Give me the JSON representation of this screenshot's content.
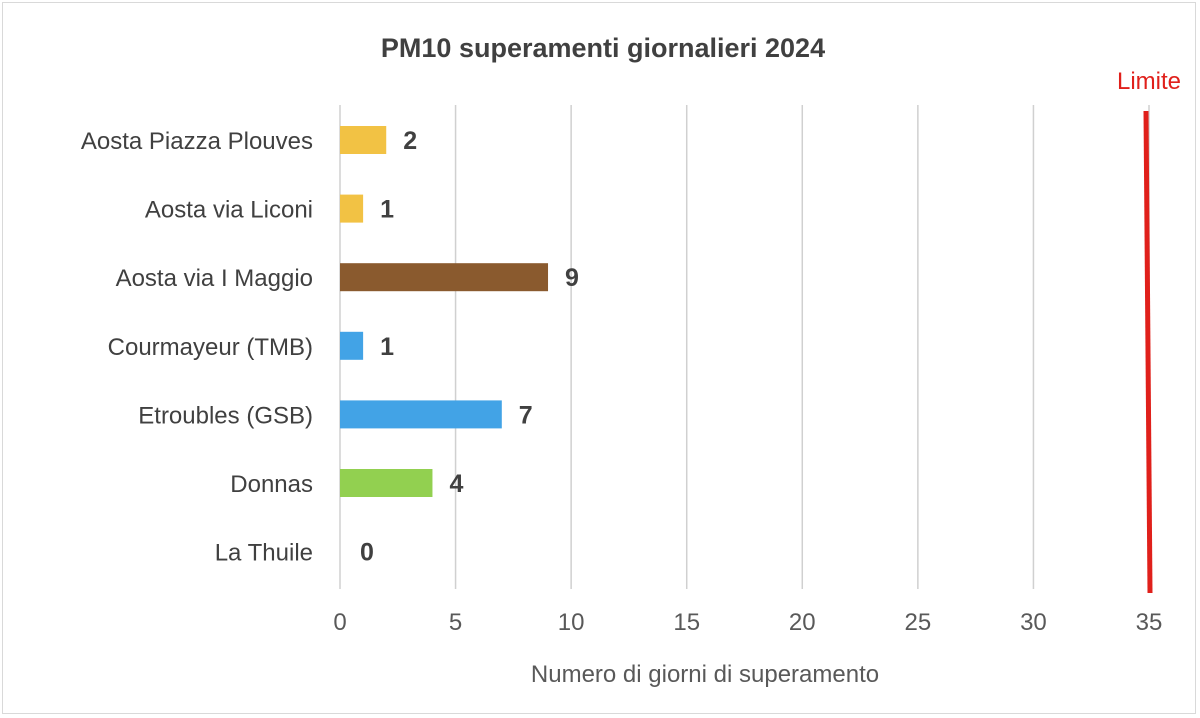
{
  "chart_data": {
    "type": "bar",
    "orientation": "horizontal",
    "title": "PM10 superamenti giornalieri 2024",
    "xlabel": "Numero di giorni di superamento",
    "ylabel": "",
    "xlim": [
      0,
      35
    ],
    "xticks": [
      0,
      5,
      10,
      15,
      20,
      25,
      30,
      35
    ],
    "grid": true,
    "categories": [
      "Aosta Piazza Plouves",
      "Aosta via Liconi",
      "Aosta via I Maggio",
      "Courmayeur (TMB)",
      "Etroubles (GSB)",
      "Donnas",
      "La Thuile"
    ],
    "values": [
      2,
      1,
      9,
      1,
      7,
      4,
      0
    ],
    "bar_colors": [
      "#f2c244",
      "#f2c244",
      "#8a5a2e",
      "#42a3e6",
      "#42a3e6",
      "#92d050",
      "#92d050"
    ],
    "value_labels": [
      "2",
      "1",
      "9",
      "1",
      "7",
      "4",
      "0"
    ],
    "reference_line": {
      "label": "Limite",
      "value": 35,
      "color": "#e0201b"
    }
  }
}
